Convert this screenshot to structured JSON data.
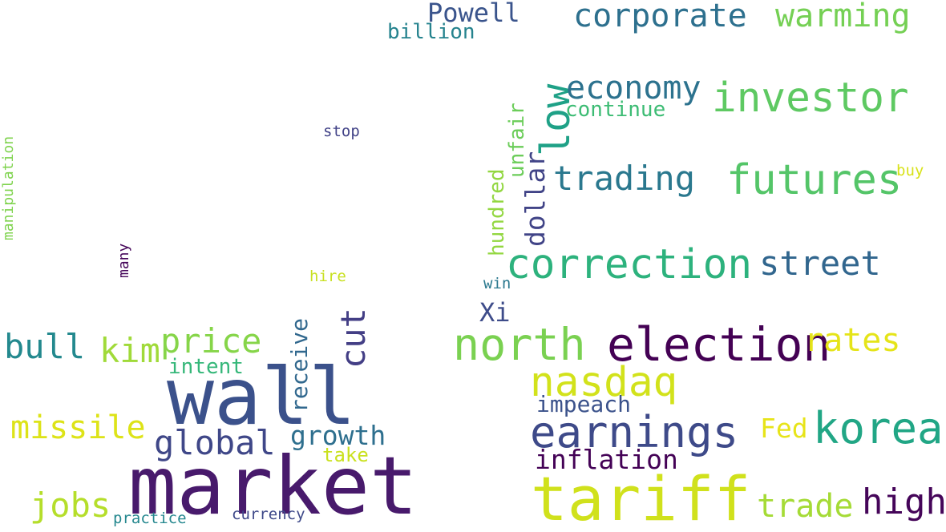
{
  "word_cloud": {
    "words": {
      "market": {
        "text": "market",
        "color": "#481a6c"
      },
      "wall": {
        "text": "wall",
        "color": "#3b518b"
      },
      "tariff": {
        "text": "tariff",
        "color": "#d0e11c"
      },
      "election": {
        "text": "election",
        "color": "#440154"
      },
      "earnings": {
        "text": "earnings",
        "color": "#3e4a89"
      },
      "north": {
        "text": "north",
        "color": "#7ad151"
      },
      "korea": {
        "text": "korea",
        "color": "#21a685"
      },
      "nasdaq": {
        "text": "nasdaq",
        "color": "#d2e21b"
      },
      "correction": {
        "text": "correction",
        "color": "#2db27d"
      },
      "futures": {
        "text": "futures",
        "color": "#54c568"
      },
      "investor": {
        "text": "investor",
        "color": "#5ec962"
      },
      "low": {
        "text": "low",
        "color": "#1fa187"
      },
      "street": {
        "text": "street",
        "color": "#31668e"
      },
      "trading": {
        "text": "trading",
        "color": "#2a788e"
      },
      "economy": {
        "text": "economy",
        "color": "#2c728e"
      },
      "corporate": {
        "text": "corporate",
        "color": "#2d708e"
      },
      "warming": {
        "text": "warming",
        "color": "#75d054"
      },
      "global": {
        "text": "global",
        "color": "#3f4788"
      },
      "price": {
        "text": "price",
        "color": "#86d549"
      },
      "kim": {
        "text": "kim",
        "color": "#a0da39"
      },
      "bull": {
        "text": "bull",
        "color": "#23898e"
      },
      "missile": {
        "text": "missile",
        "color": "#dde318"
      },
      "jobs": {
        "text": "jobs",
        "color": "#b5de2b"
      },
      "growth": {
        "text": "growth",
        "color": "#2e6f8e"
      },
      "high": {
        "text": "high",
        "color": "#450559"
      },
      "trade": {
        "text": "trade",
        "color": "#a5db36"
      },
      "rates": {
        "text": "rates",
        "color": "#e5e419"
      },
      "inflation": {
        "text": "inflation",
        "color": "#440256"
      },
      "impeach": {
        "text": "impeach",
        "color": "#3b528b"
      },
      "fed": {
        "text": "Fed",
        "color": "#e7e419"
      },
      "powell": {
        "text": "Powell",
        "color": "#3a548c"
      },
      "billion": {
        "text": "billion",
        "color": "#25838e"
      },
      "continue": {
        "text": "continue",
        "color": "#3dbc74"
      },
      "cut": {
        "text": "cut",
        "color": "#433e85"
      },
      "receive": {
        "text": "receive",
        "color": "#31688e"
      },
      "dollar": {
        "text": "dollar",
        "color": "#414487"
      },
      "hundred": {
        "text": "hundred",
        "color": "#93d741"
      },
      "unfair": {
        "text": "unfair",
        "color": "#6ccd5a"
      },
      "xi": {
        "text": "Xi",
        "color": "#3e4c8a"
      },
      "intent": {
        "text": "intent",
        "color": "#35b779"
      },
      "take": {
        "text": "take",
        "color": "#cae11f"
      },
      "currency": {
        "text": "currency",
        "color": "#3e4989"
      },
      "practice": {
        "text": "practice",
        "color": "#24878e"
      },
      "stop": {
        "text": "stop",
        "color": "#414287"
      },
      "hire": {
        "text": "hire",
        "color": "#c8e020"
      },
      "win": {
        "text": "win",
        "color": "#2a788e"
      },
      "buy": {
        "text": "buy",
        "color": "#d8e219"
      },
      "many": {
        "text": "many",
        "color": "#46075a"
      },
      "manipulation": {
        "text": "manipulation",
        "color": "#7fd34e"
      }
    }
  }
}
